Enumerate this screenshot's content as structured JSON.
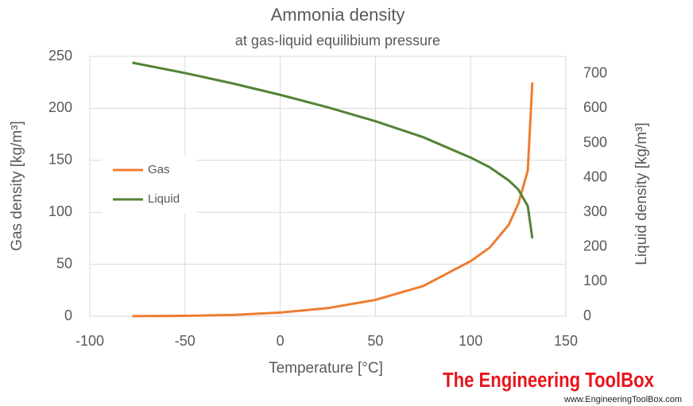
{
  "chart_data": {
    "type": "line",
    "title": "Ammonia density",
    "subtitle": "at gas-liquid equilibium pressure",
    "x_label": "Temperature [°C]",
    "y_label": "Gas density [kg/m³]",
    "y2_label": "Liquid density [kg/m³]",
    "x": [
      -77.7,
      -50,
      -25,
      0,
      25,
      50,
      75,
      100,
      110,
      120,
      125,
      130,
      132.4
    ],
    "series": [
      {
        "name": "Gas",
        "color": "#ed7d31",
        "values": [
          0.06,
          0.4,
          1.2,
          3.5,
          7.8,
          15.7,
          29,
          53,
          66,
          88,
          108,
          140,
          225
        ]
      },
      {
        "name": "Liquid",
        "color": "#548235",
        "axis": "y2",
        "values": [
          732,
          702,
          672,
          639,
          603,
          563,
          517,
          458,
          430,
          392,
          366,
          318,
          225
        ]
      }
    ],
    "xlim": [
      -100,
      150
    ],
    "xticks": [
      -100,
      -50,
      0,
      50,
      100,
      150
    ],
    "ylim": [
      0,
      250
    ],
    "yticks": [
      0,
      50,
      100,
      150,
      200,
      250
    ],
    "y2lim": [
      0,
      750
    ],
    "y2ticks": [
      0,
      100,
      200,
      300,
      400,
      500,
      600,
      700
    ],
    "grid": true,
    "legend": "left",
    "watermark": {
      "title": "The Engineering ToolBox",
      "url": "www.EngineeringToolBox.com"
    }
  }
}
